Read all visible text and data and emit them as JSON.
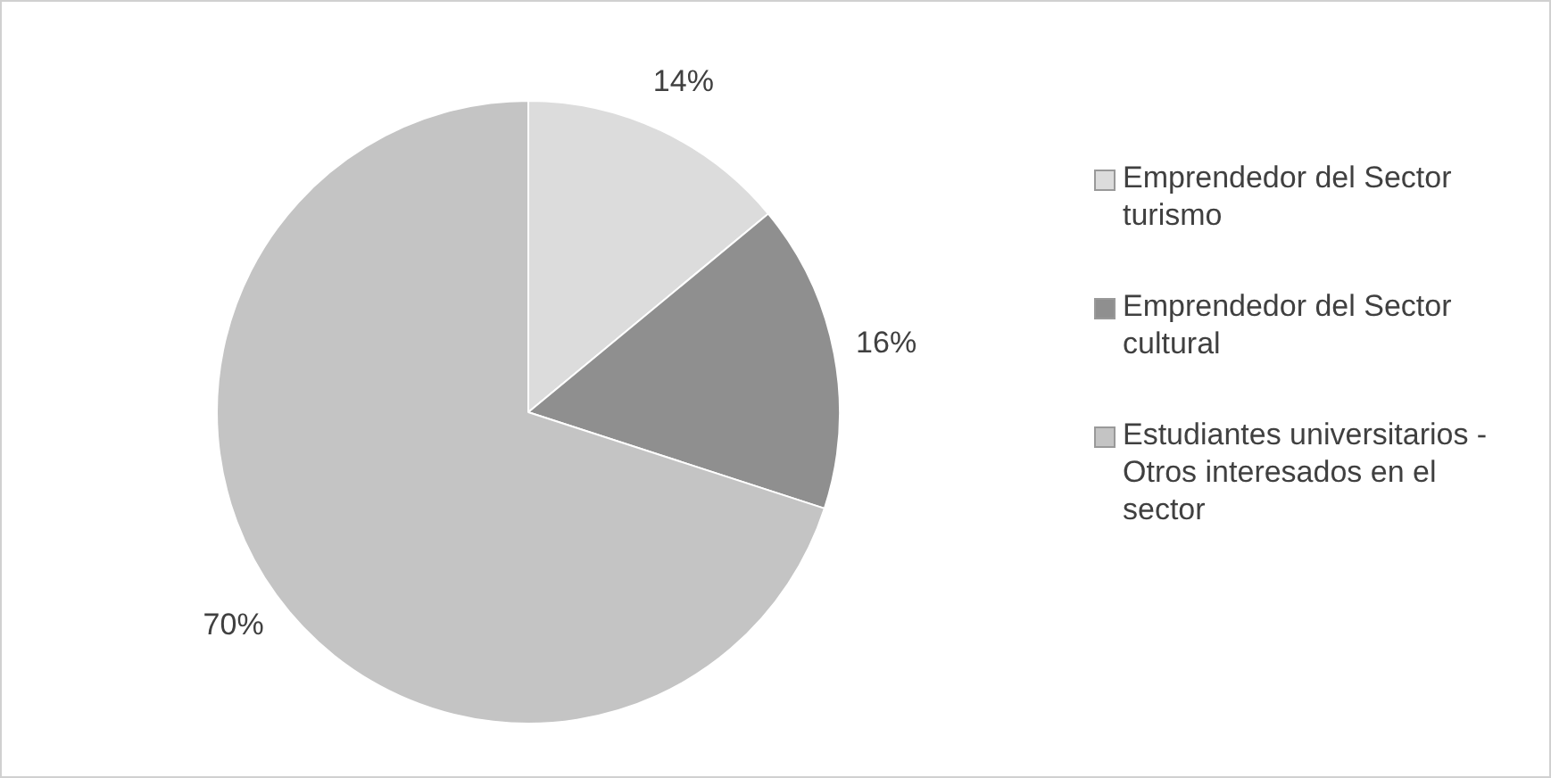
{
  "chart_data": {
    "type": "pie",
    "categories": [
      "Emprendedor del Sector turismo",
      "Emprendedor del Sector cultural",
      "Estudiantes universitarios - Otros  interesados en el sector"
    ],
    "values": [
      14,
      16,
      70
    ],
    "colors": [
      "#dcdcdc",
      "#8f8f8f",
      "#c4c4c4"
    ],
    "value_labels": [
      "14%",
      "16%",
      "70%"
    ],
    "legend": "right"
  }
}
